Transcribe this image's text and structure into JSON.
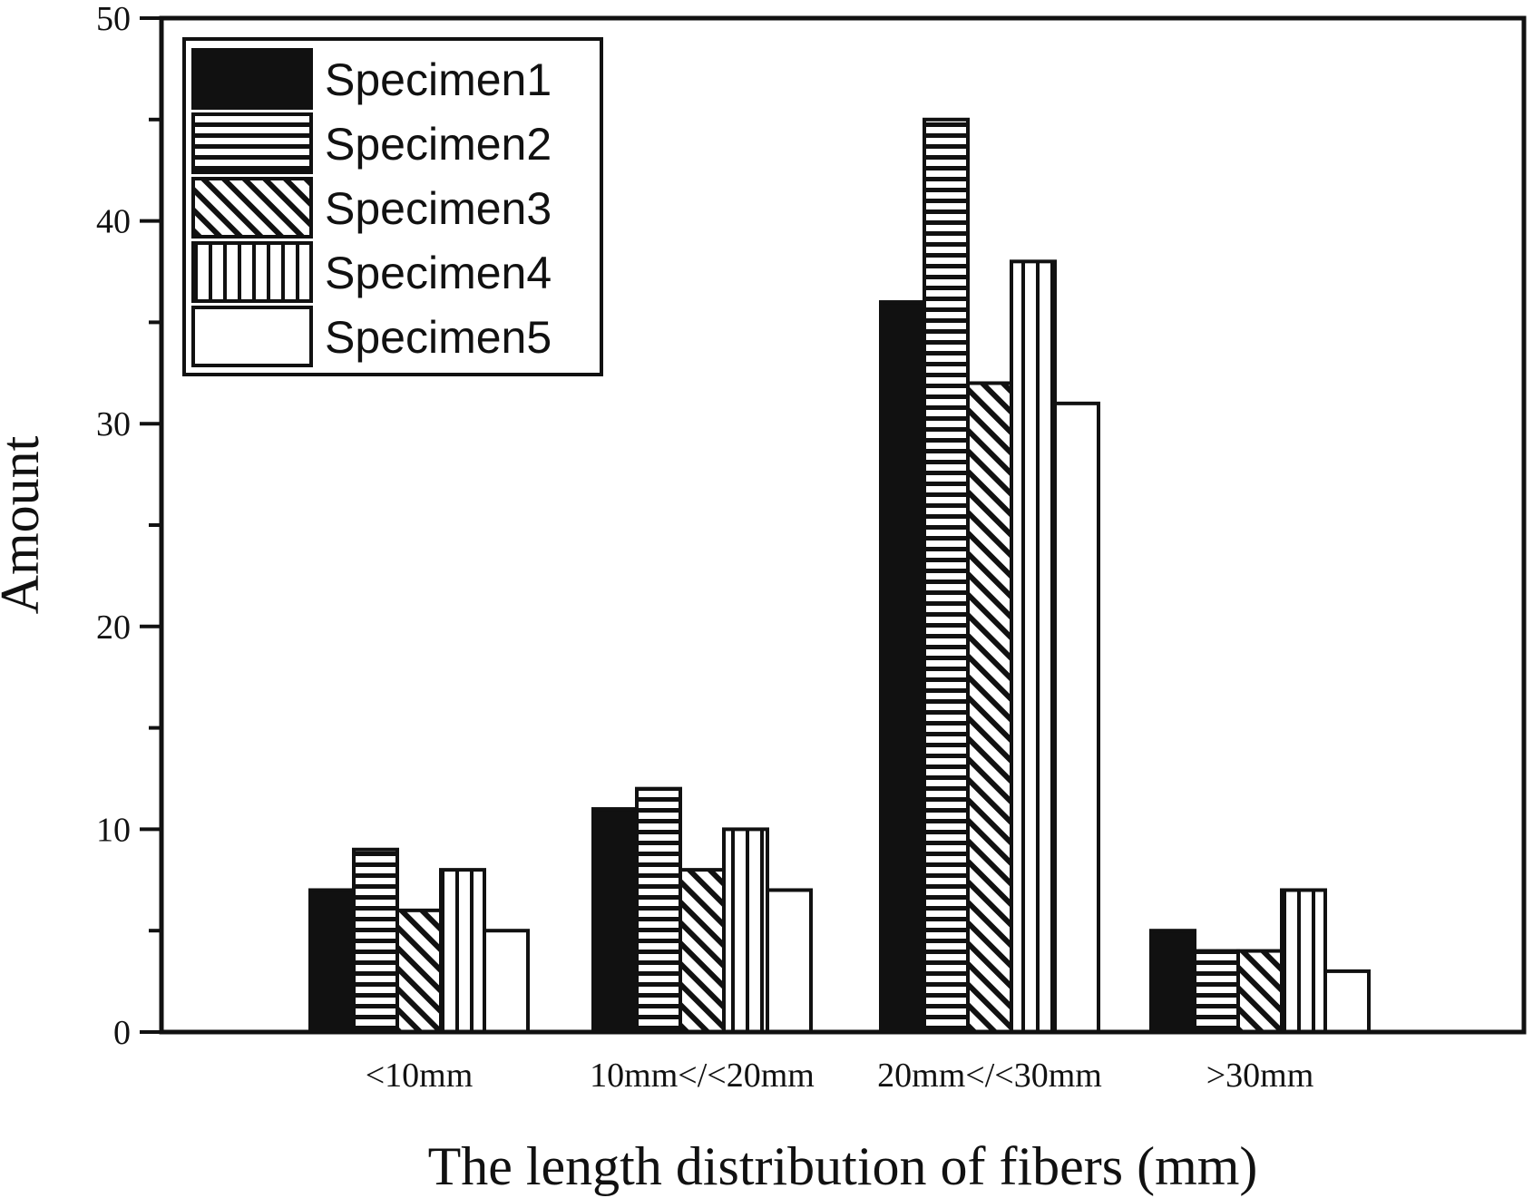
{
  "chart_data": {
    "type": "bar",
    "title": "",
    "xlabel": "The length distribution of fibers (mm)",
    "ylabel": "Amount",
    "ylim": [
      0,
      50
    ],
    "yticks": [
      0,
      10,
      20,
      30,
      40,
      50
    ],
    "categories": [
      "<10mm",
      "10mm</<20mm",
      "20mm</<30mm",
      ">30mm"
    ],
    "series": [
      {
        "name": "Specimen1",
        "pattern": "solid",
        "values": [
          7,
          11,
          36,
          5
        ]
      },
      {
        "name": "Specimen2",
        "pattern": "horizontal-lines",
        "values": [
          9,
          12,
          45,
          4
        ]
      },
      {
        "name": "Specimen3",
        "pattern": "diagonal-lines",
        "values": [
          6,
          8,
          32,
          4
        ]
      },
      {
        "name": "Specimen4",
        "pattern": "vertical-lines",
        "values": [
          8,
          10,
          38,
          7
        ]
      },
      {
        "name": "Specimen5",
        "pattern": "empty",
        "values": [
          5,
          7,
          31,
          3
        ]
      }
    ],
    "legend": {
      "position": "top-left"
    },
    "grid": false,
    "colors": {
      "ink": "#111111",
      "background": "#ffffff"
    }
  }
}
